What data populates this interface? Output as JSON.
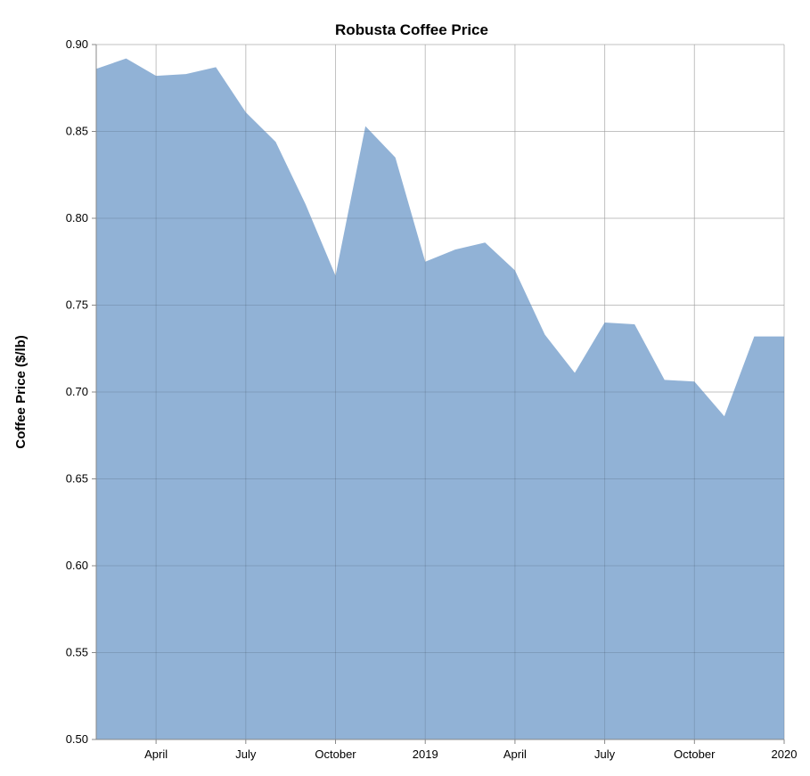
{
  "chart_data": {
    "type": "area",
    "title": "Robusta Coffee Price",
    "xlabel": "",
    "ylabel": "Coffee Price ($/lb)",
    "ylim": [
      0.5,
      0.9
    ],
    "xlim": [
      "2018-02-01",
      "2020-01-01"
    ],
    "y_ticks": [
      "0.50",
      "0.55",
      "0.60",
      "0.65",
      "0.70",
      "0.75",
      "0.80",
      "0.85",
      "0.90"
    ],
    "x_ticks": [
      {
        "date": "2018-04-01",
        "label": "April"
      },
      {
        "date": "2018-07-01",
        "label": "July"
      },
      {
        "date": "2018-10-01",
        "label": "October"
      },
      {
        "date": "2019-01-01",
        "label": "2019"
      },
      {
        "date": "2019-04-01",
        "label": "April"
      },
      {
        "date": "2019-07-01",
        "label": "July"
      },
      {
        "date": "2019-10-01",
        "label": "October"
      },
      {
        "date": "2020-01-01",
        "label": "2020"
      }
    ],
    "grid": true,
    "color": "#91b2d6",
    "x": [
      "2018-02-01",
      "2018-03-01",
      "2018-04-01",
      "2018-05-01",
      "2018-06-01",
      "2018-07-01",
      "2018-08-01",
      "2018-09-01",
      "2018-10-01",
      "2018-11-01",
      "2018-12-01",
      "2019-01-01",
      "2019-02-01",
      "2019-03-01",
      "2019-04-01",
      "2019-05-01",
      "2019-06-01",
      "2019-07-01",
      "2019-08-01",
      "2019-09-01",
      "2019-10-01",
      "2019-11-01",
      "2019-12-01",
      "2020-01-01"
    ],
    "values": [
      0.886,
      0.892,
      0.882,
      0.883,
      0.887,
      0.861,
      0.844,
      0.808,
      0.767,
      0.853,
      0.835,
      0.775,
      0.782,
      0.786,
      0.77,
      0.733,
      0.711,
      0.74,
      0.739,
      0.707,
      0.706,
      0.686,
      0.732,
      0.732
    ]
  }
}
